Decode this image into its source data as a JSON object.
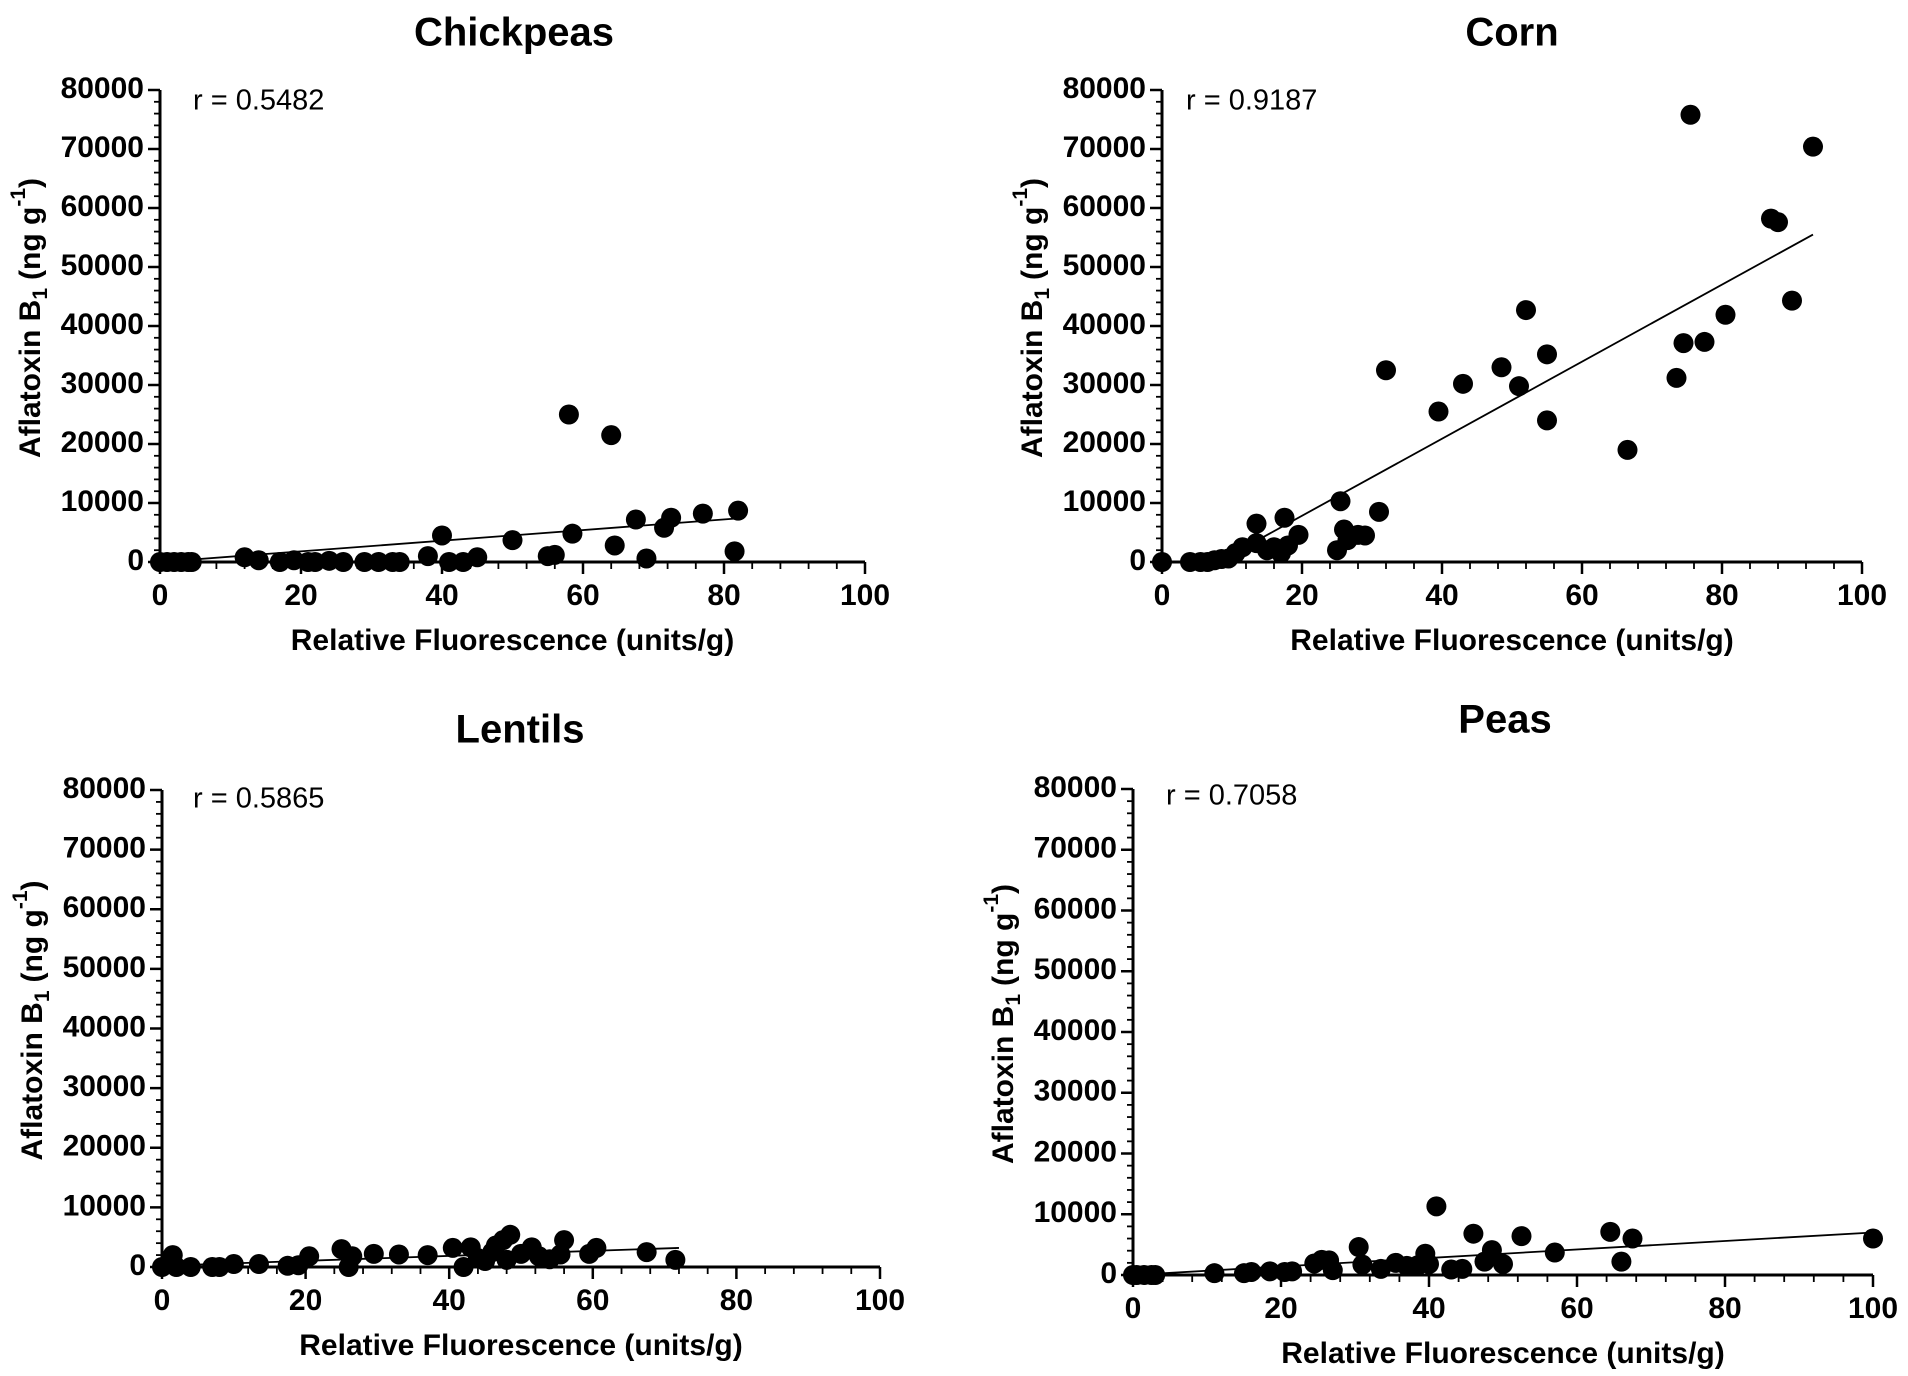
{
  "chart_data": [
    {
      "type": "scatter",
      "title": "Chickpeas",
      "annotation": "r = 0.5482",
      "xlabel": "Relative Fluorescence (units/g)",
      "ylabel": "Aflatoxin B",
      "ylabel_subscript": "1",
      "ylabel_units": "(ng g",
      "ylabel_superscript": "-1",
      "ylabel_close": ")",
      "xlim": [
        0,
        100
      ],
      "ylim": [
        0,
        80000
      ],
      "xticks": [
        "0",
        "20",
        "40",
        "60",
        "80",
        "100"
      ],
      "yticks": [
        "0",
        "10000",
        "20000",
        "30000",
        "40000",
        "50000",
        "60000",
        "70000",
        "80000"
      ],
      "fit_line": {
        "x": [
          0,
          82
        ],
        "y": [
          0,
          7400
        ]
      },
      "points": [
        [
          0,
          0
        ],
        [
          1,
          0
        ],
        [
          2,
          0
        ],
        [
          3,
          0
        ],
        [
          4,
          0
        ],
        [
          4.5,
          0
        ],
        [
          12,
          800
        ],
        [
          14,
          300
        ],
        [
          17,
          0
        ],
        [
          19,
          300
        ],
        [
          21,
          0
        ],
        [
          22,
          0
        ],
        [
          24,
          200
        ],
        [
          26,
          0
        ],
        [
          29,
          0
        ],
        [
          31,
          0
        ],
        [
          33,
          0
        ],
        [
          34,
          0
        ],
        [
          38,
          1000
        ],
        [
          40,
          4500
        ],
        [
          41,
          0
        ],
        [
          43,
          0
        ],
        [
          45,
          800
        ],
        [
          50,
          3700
        ],
        [
          55,
          1000
        ],
        [
          56,
          1200
        ],
        [
          58,
          25000
        ],
        [
          58.5,
          4800
        ],
        [
          64,
          21500
        ],
        [
          64.5,
          2800
        ],
        [
          67.5,
          7200
        ],
        [
          69,
          600
        ],
        [
          71.5,
          5800
        ],
        [
          72.5,
          7500
        ],
        [
          77,
          8200
        ],
        [
          81.5,
          1800
        ],
        [
          82,
          8700
        ]
      ]
    },
    {
      "type": "scatter",
      "title": "Corn",
      "annotation": "r = 0.9187",
      "xlabel": "Relative Fluorescence (units/g)",
      "ylabel": "Aflatoxin B",
      "ylabel_subscript": "1",
      "ylabel_units": "(ng g",
      "ylabel_superscript": "-1",
      "ylabel_close": ")",
      "xlim": [
        0,
        100
      ],
      "ylim": [
        0,
        80000
      ],
      "xticks": [
        "0",
        "20",
        "40",
        "60",
        "80",
        "100"
      ],
      "yticks": [
        "0",
        "10000",
        "20000",
        "30000",
        "40000",
        "50000",
        "60000",
        "70000",
        "80000"
      ],
      "fit_line": {
        "x": [
          8,
          93
        ],
        "y": [
          0,
          55500
        ]
      },
      "points": [
        [
          0,
          0
        ],
        [
          4,
          0
        ],
        [
          5.5,
          0
        ],
        [
          6.5,
          0
        ],
        [
          7.5,
          300
        ],
        [
          8.5,
          500
        ],
        [
          9.5,
          600
        ],
        [
          10.5,
          1500
        ],
        [
          11.5,
          2500
        ],
        [
          13.5,
          6500
        ],
        [
          13.5,
          3200
        ],
        [
          15,
          2000
        ],
        [
          16,
          2500
        ],
        [
          17,
          1500
        ],
        [
          17.5,
          7500
        ],
        [
          18,
          2800
        ],
        [
          19.5,
          4600
        ],
        [
          25,
          2000
        ],
        [
          25.5,
          10300
        ],
        [
          26,
          5500
        ],
        [
          26.5,
          3700
        ],
        [
          28,
          4600
        ],
        [
          29,
          4500
        ],
        [
          31,
          8500
        ],
        [
          32,
          32500
        ],
        [
          39.5,
          25500
        ],
        [
          43,
          30200
        ],
        [
          48.5,
          33000
        ],
        [
          51,
          29800
        ],
        [
          52,
          42700
        ],
        [
          55,
          35200
        ],
        [
          55,
          24000
        ],
        [
          66.5,
          19000
        ],
        [
          73.5,
          31200
        ],
        [
          74.5,
          37100
        ],
        [
          75.5,
          75800
        ],
        [
          77.5,
          37300
        ],
        [
          80.5,
          41900
        ],
        [
          87,
          58200
        ],
        [
          88,
          57600
        ],
        [
          90,
          44300
        ],
        [
          93,
          70400
        ]
      ]
    },
    {
      "type": "scatter",
      "title": "Lentils",
      "annotation": "r = 0.5865",
      "xlabel": "Relative Fluorescence (units/g)",
      "ylabel": "Aflatoxin B",
      "ylabel_subscript": "1",
      "ylabel_units": "(ng g",
      "ylabel_superscript": "-1",
      "ylabel_close": ")",
      "xlim": [
        0,
        100
      ],
      "ylim": [
        0,
        80000
      ],
      "xticks": [
        "0",
        "20",
        "40",
        "60",
        "80",
        "100"
      ],
      "yticks": [
        "0",
        "10000",
        "20000",
        "30000",
        "40000",
        "50000",
        "60000",
        "70000",
        "80000"
      ],
      "fit_line": {
        "x": [
          0,
          72
        ],
        "y": [
          200,
          3200
        ]
      },
      "points": [
        [
          0,
          0
        ],
        [
          1,
          500
        ],
        [
          1.5,
          2000
        ],
        [
          2,
          0
        ],
        [
          4,
          0
        ],
        [
          7,
          0
        ],
        [
          8,
          0
        ],
        [
          10,
          500
        ],
        [
          13.5,
          500
        ],
        [
          17.5,
          200
        ],
        [
          19,
          300
        ],
        [
          20.5,
          1800
        ],
        [
          25,
          3000
        ],
        [
          26,
          0
        ],
        [
          26.5,
          1800
        ],
        [
          29.5,
          2200
        ],
        [
          33,
          2100
        ],
        [
          37,
          2000
        ],
        [
          40.5,
          3200
        ],
        [
          42,
          0
        ],
        [
          43,
          3300
        ],
        [
          44,
          1500
        ],
        [
          45,
          1000
        ],
        [
          46,
          2500
        ],
        [
          46.5,
          3600
        ],
        [
          47.5,
          4500
        ],
        [
          48.5,
          5400
        ],
        [
          48,
          1200
        ],
        [
          50,
          2200
        ],
        [
          51.5,
          3300
        ],
        [
          52.5,
          1800
        ],
        [
          54,
          1300
        ],
        [
          55.5,
          2100
        ],
        [
          56,
          4500
        ],
        [
          59.5,
          2200
        ],
        [
          60.5,
          3200
        ],
        [
          67.5,
          2500
        ],
        [
          71.5,
          1200
        ]
      ]
    },
    {
      "type": "scatter",
      "title": "Peas",
      "annotation": "r = 0.7058",
      "xlabel": "Relative Fluorescence (units/g)",
      "ylabel": "Aflatoxin B",
      "ylabel_subscript": "1",
      "ylabel_units": "(ng g",
      "ylabel_superscript": "-1",
      "ylabel_close": ")",
      "xlim": [
        0,
        100
      ],
      "ylim": [
        0,
        80000
      ],
      "xticks": [
        "0",
        "20",
        "40",
        "60",
        "80",
        "100"
      ],
      "yticks": [
        "0",
        "10000",
        "20000",
        "30000",
        "40000",
        "50000",
        "60000",
        "70000",
        "80000"
      ],
      "fit_line": {
        "x": [
          0,
          100
        ],
        "y": [
          0,
          7000
        ]
      },
      "points": [
        [
          0,
          0
        ],
        [
          0.5,
          0
        ],
        [
          1.5,
          0
        ],
        [
          2.5,
          0
        ],
        [
          3,
          0
        ],
        [
          11,
          300
        ],
        [
          15,
          300
        ],
        [
          16,
          500
        ],
        [
          18.5,
          600
        ],
        [
          20.5,
          500
        ],
        [
          21.5,
          600
        ],
        [
          24.5,
          1900
        ],
        [
          25.5,
          2500
        ],
        [
          26.5,
          2400
        ],
        [
          27,
          800
        ],
        [
          30.5,
          4600
        ],
        [
          31,
          1700
        ],
        [
          33.5,
          1000
        ],
        [
          35.5,
          2000
        ],
        [
          37,
          1500
        ],
        [
          38.5,
          1600
        ],
        [
          39.5,
          3500
        ],
        [
          40,
          1800
        ],
        [
          41,
          11300
        ],
        [
          43,
          900
        ],
        [
          44.5,
          1000
        ],
        [
          46,
          6800
        ],
        [
          47.5,
          2200
        ],
        [
          48.5,
          4100
        ],
        [
          50,
          1800
        ],
        [
          52.5,
          6400
        ],
        [
          57,
          3700
        ],
        [
          64.5,
          7100
        ],
        [
          66,
          2200
        ],
        [
          67.5,
          6000
        ],
        [
          100,
          6000
        ]
      ]
    }
  ]
}
